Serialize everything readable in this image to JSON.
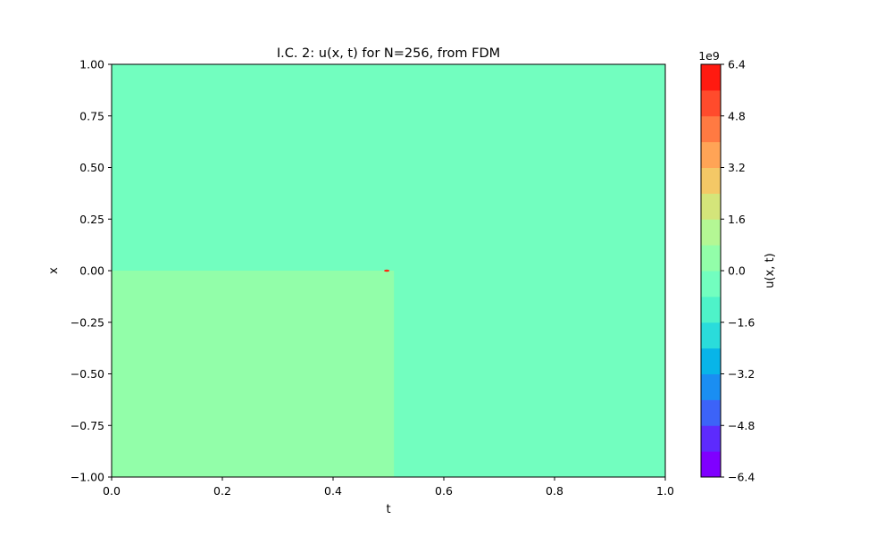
{
  "chart_data": {
    "type": "heatmap",
    "title": "I.C. 2: u(x, t) for N=256, from FDM",
    "xlabel": "t",
    "ylabel": "x",
    "xlim": [
      0.0,
      1.0
    ],
    "ylim": [
      -1.0,
      1.0
    ],
    "x_ticks": [
      "0.0",
      "0.2",
      "0.4",
      "0.6",
      "0.8",
      "1.0"
    ],
    "y_ticks": [
      "−1.00",
      "−0.75",
      "−0.50",
      "−0.25",
      "0.00",
      "0.25",
      "0.50",
      "0.75",
      "1.00"
    ],
    "grid": false,
    "background_color": "#72febf",
    "regions": [
      {
        "t": [
          0.0,
          0.51
        ],
        "x": [
          -1.0,
          0.0
        ],
        "value_range": [
          0.0,
          0.8
        ],
        "color": "#92fea9"
      }
    ],
    "spike": {
      "t": 0.497,
      "x": 0.0,
      "color": "#ff2a10"
    },
    "colorbar": {
      "label": "u(x, t)",
      "scale_label": "1e9",
      "range": [
        -6.4,
        6.4
      ],
      "tick_values": [
        -6.4,
        -4.8,
        -3.2,
        -1.6,
        0.0,
        1.6,
        3.2,
        4.8,
        6.4
      ],
      "tick_labels": [
        "−6.4",
        "−4.8",
        "−3.2",
        "−1.6",
        "0.0",
        "1.6",
        "3.2",
        "4.8",
        "6.4"
      ],
      "level_colors": [
        "#7f00ff",
        "#5d2bfd",
        "#3c63f8",
        "#1a8ef2",
        "#08b5e8",
        "#2adcdb",
        "#4ef3c9",
        "#72febf",
        "#92fea9",
        "#b4f794",
        "#d4e57a",
        "#f4c866",
        "#ffa456",
        "#ff7a42",
        "#ff4b2c",
        "#ff1a10"
      ]
    }
  }
}
